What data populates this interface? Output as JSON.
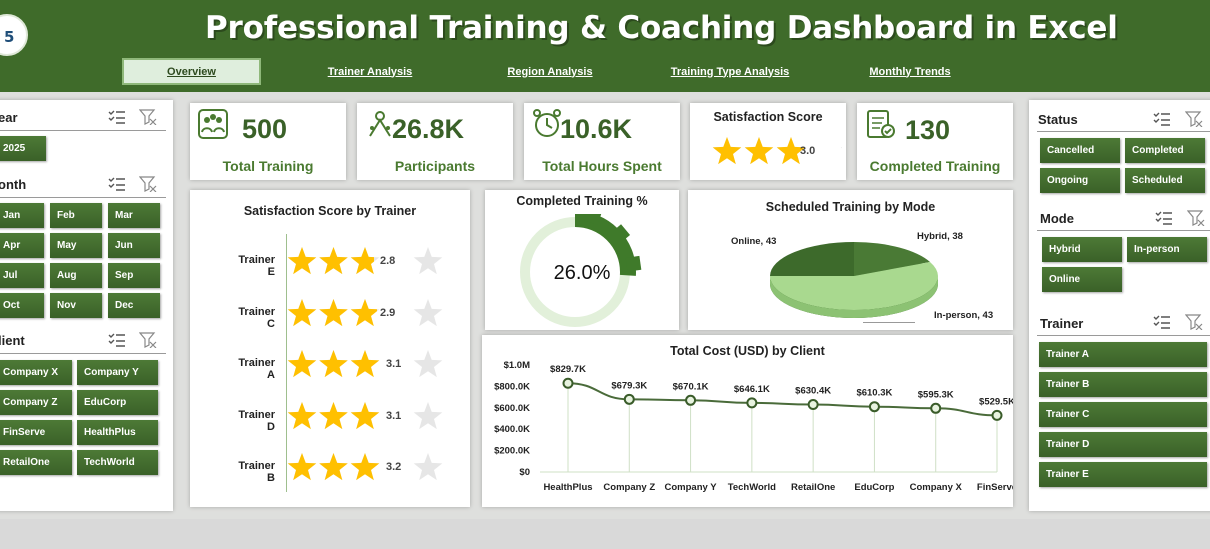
{
  "header": {
    "title": "Professional Training & Coaching Dashboard in Excel",
    "logo_text": "5"
  },
  "tabs": [
    {
      "label": "Overview",
      "active": true
    },
    {
      "label": "Trainer Analysis"
    },
    {
      "label": "Region Analysis"
    },
    {
      "label": "Training Type Analysis"
    },
    {
      "label": "Monthly Trends"
    }
  ],
  "left_slicers": {
    "year": {
      "title": "ear",
      "items": [
        "2025"
      ]
    },
    "month": {
      "title": "onth",
      "items": [
        "Jan",
        "Feb",
        "Mar",
        "Apr",
        "May",
        "Jun",
        "Jul",
        "Aug",
        "Sep",
        "Oct",
        "Nov",
        "Dec"
      ]
    },
    "client": {
      "title": "lient",
      "items": [
        "Company X",
        "Company Y",
        "Company Z",
        "EduCorp",
        "FinServe",
        "HealthPlus",
        "RetailOne",
        "TechWorld"
      ]
    }
  },
  "right_slicers": {
    "status": {
      "title": "Status",
      "items": [
        "Cancelled",
        "Completed",
        "Ongoing",
        "Scheduled"
      ]
    },
    "mode": {
      "title": "Mode",
      "items": [
        "Hybrid",
        "In-person",
        "Online"
      ]
    },
    "trainer": {
      "title": "Trainer",
      "items": [
        "Trainer A",
        "Trainer B",
        "Trainer C",
        "Trainer D",
        "Trainer E"
      ]
    }
  },
  "kpis": {
    "total_training": {
      "value": "500",
      "label": "Total Training"
    },
    "participants": {
      "value": "26.8K",
      "label": "Participants"
    },
    "hours": {
      "value": "10.6K",
      "label": "Total Hours Spent"
    },
    "satisfaction": {
      "title": "Satisfaction Score",
      "value": "3.0",
      "stars": 3.0
    },
    "completed": {
      "value": "130",
      "label": "Completed Training"
    }
  },
  "colors": {
    "header": "#3f6b2a",
    "button": "#3a6128",
    "star": "#ffc000",
    "star_empty": "#e6e6e6",
    "line": "#4a6b3a"
  },
  "charts": {
    "trainer_satisfaction": {
      "title": "Satisfaction Score by Trainer",
      "rows": [
        {
          "name": "Trainer E",
          "value": "2.8",
          "stars": 2.8
        },
        {
          "name": "Trainer C",
          "value": "2.9",
          "stars": 2.9
        },
        {
          "name": "Trainer A",
          "value": "3.1",
          "stars": 3.1
        },
        {
          "name": "Trainer D",
          "value": "3.1",
          "stars": 3.1
        },
        {
          "name": "Trainer B",
          "value": "3.2",
          "stars": 3.2
        }
      ]
    },
    "completed_pct": {
      "title": "Completed Training %",
      "value": "26.0%",
      "fraction": 0.26
    },
    "mode_pie": {
      "title": "Scheduled Training by Mode",
      "slices": [
        {
          "name": "Hybrid",
          "value": 38,
          "label": "Hybrid, 38"
        },
        {
          "name": "In-person",
          "value": 43,
          "label": "In-person, 43"
        },
        {
          "name": "Online",
          "value": 43,
          "label": "Online, 43"
        }
      ]
    }
  },
  "chart_data": {
    "type": "line",
    "title": "Total Cost (USD) by Client",
    "categories": [
      "HealthPlus",
      "Company Z",
      "Company Y",
      "TechWorld",
      "RetailOne",
      "EduCorp",
      "Company X",
      "FinServe"
    ],
    "values": [
      829.7,
      679.3,
      670.1,
      646.1,
      630.4,
      610.3,
      595.3,
      529.5
    ],
    "data_labels": [
      "$829.7K",
      "$679.3K",
      "$670.1K",
      "$646.1K",
      "$630.4K",
      "$610.3K",
      "$595.3K",
      "$529.5K"
    ],
    "ylim": [
      0,
      1000
    ],
    "yticks": [
      "$0",
      "$200.0K",
      "$400.0K",
      "$600.0K",
      "$800.0K",
      "$1.0M"
    ],
    "grid": false,
    "legend": "none"
  }
}
